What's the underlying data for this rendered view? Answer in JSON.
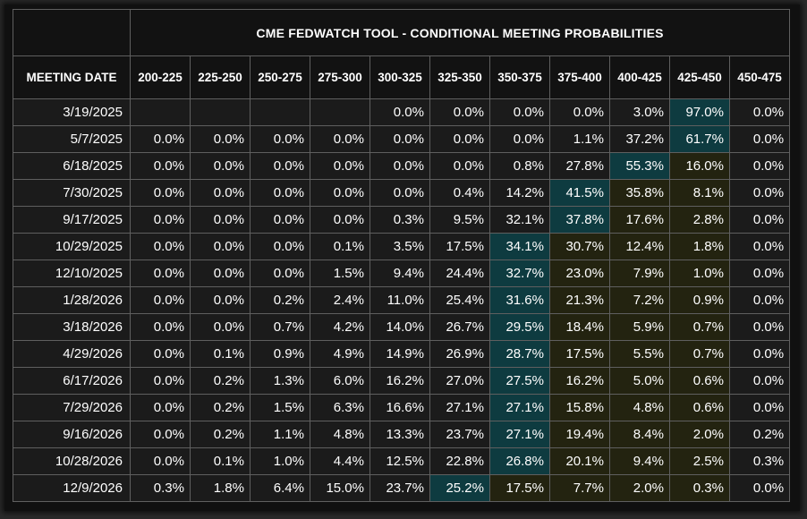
{
  "title": "CME FEDWATCH TOOL - CONDITIONAL MEETING PROBABILITIES",
  "date_header": "MEETING DATE",
  "ranges": [
    "200-225",
    "225-250",
    "250-275",
    "275-300",
    "300-325",
    "325-350",
    "350-375",
    "375-400",
    "400-425",
    "425-450",
    "450-475"
  ],
  "colors": {
    "highlight": "#0e3b40",
    "above_mode": "#232310",
    "cell": "#1b1b1b",
    "border": "#5f5f5f"
  },
  "rows": [
    {
      "date": "3/19/2025",
      "values": [
        "",
        "",
        "",
        "",
        "0.0%",
        "0.0%",
        "0.0%",
        "0.0%",
        "3.0%",
        "97.0%",
        "0.0%"
      ],
      "mode": 9
    },
    {
      "date": "5/7/2025",
      "values": [
        "0.0%",
        "0.0%",
        "0.0%",
        "0.0%",
        "0.0%",
        "0.0%",
        "0.0%",
        "1.1%",
        "37.2%",
        "61.7%",
        "0.0%"
      ],
      "mode": 9
    },
    {
      "date": "6/18/2025",
      "values": [
        "0.0%",
        "0.0%",
        "0.0%",
        "0.0%",
        "0.0%",
        "0.0%",
        "0.8%",
        "27.8%",
        "55.3%",
        "16.0%",
        "0.0%"
      ],
      "mode": 8
    },
    {
      "date": "7/30/2025",
      "values": [
        "0.0%",
        "0.0%",
        "0.0%",
        "0.0%",
        "0.0%",
        "0.4%",
        "14.2%",
        "41.5%",
        "35.8%",
        "8.1%",
        "0.0%"
      ],
      "mode": 7
    },
    {
      "date": "9/17/2025",
      "values": [
        "0.0%",
        "0.0%",
        "0.0%",
        "0.0%",
        "0.3%",
        "9.5%",
        "32.1%",
        "37.8%",
        "17.6%",
        "2.8%",
        "0.0%"
      ],
      "mode": 7
    },
    {
      "date": "10/29/2025",
      "values": [
        "0.0%",
        "0.0%",
        "0.0%",
        "0.1%",
        "3.5%",
        "17.5%",
        "34.1%",
        "30.7%",
        "12.4%",
        "1.8%",
        "0.0%"
      ],
      "mode": 6
    },
    {
      "date": "12/10/2025",
      "values": [
        "0.0%",
        "0.0%",
        "0.0%",
        "1.5%",
        "9.4%",
        "24.4%",
        "32.7%",
        "23.0%",
        "7.9%",
        "1.0%",
        "0.0%"
      ],
      "mode": 6
    },
    {
      "date": "1/28/2026",
      "values": [
        "0.0%",
        "0.0%",
        "0.2%",
        "2.4%",
        "11.0%",
        "25.4%",
        "31.6%",
        "21.3%",
        "7.2%",
        "0.9%",
        "0.0%"
      ],
      "mode": 6
    },
    {
      "date": "3/18/2026",
      "values": [
        "0.0%",
        "0.0%",
        "0.7%",
        "4.2%",
        "14.0%",
        "26.7%",
        "29.5%",
        "18.4%",
        "5.9%",
        "0.7%",
        "0.0%"
      ],
      "mode": 6
    },
    {
      "date": "4/29/2026",
      "values": [
        "0.0%",
        "0.1%",
        "0.9%",
        "4.9%",
        "14.9%",
        "26.9%",
        "28.7%",
        "17.5%",
        "5.5%",
        "0.7%",
        "0.0%"
      ],
      "mode": 6
    },
    {
      "date": "6/17/2026",
      "values": [
        "0.0%",
        "0.2%",
        "1.3%",
        "6.0%",
        "16.2%",
        "27.0%",
        "27.5%",
        "16.2%",
        "5.0%",
        "0.6%",
        "0.0%"
      ],
      "mode": 6
    },
    {
      "date": "7/29/2026",
      "values": [
        "0.0%",
        "0.2%",
        "1.5%",
        "6.3%",
        "16.6%",
        "27.1%",
        "27.1%",
        "15.8%",
        "4.8%",
        "0.6%",
        "0.0%"
      ],
      "mode": 6
    },
    {
      "date": "9/16/2026",
      "values": [
        "0.0%",
        "0.2%",
        "1.1%",
        "4.8%",
        "13.3%",
        "23.7%",
        "27.1%",
        "19.4%",
        "8.4%",
        "2.0%",
        "0.2%"
      ],
      "mode": 6
    },
    {
      "date": "10/28/2026",
      "values": [
        "0.0%",
        "0.1%",
        "1.0%",
        "4.4%",
        "12.5%",
        "22.8%",
        "26.8%",
        "20.1%",
        "9.4%",
        "2.5%",
        "0.3%"
      ],
      "mode": 6
    },
    {
      "date": "12/9/2026",
      "values": [
        "0.3%",
        "1.8%",
        "6.4%",
        "15.0%",
        "23.7%",
        "25.2%",
        "17.5%",
        "7.7%",
        "2.0%",
        "0.3%",
        "0.0%"
      ],
      "mode": 5
    }
  ]
}
